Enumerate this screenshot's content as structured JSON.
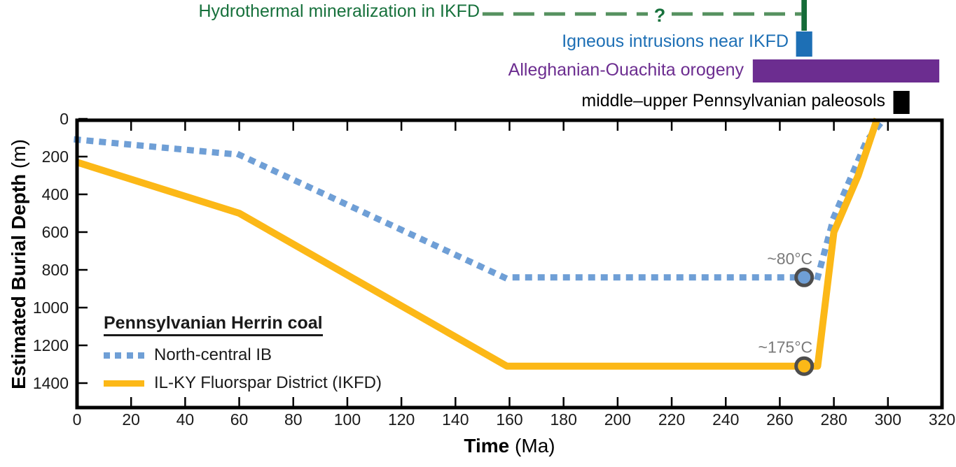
{
  "annotations": {
    "hydrothermal": {
      "label": "Hydrothermal mineralization in IKFD",
      "uncertainty_label": "?",
      "text_color": "#17713c",
      "dash_color": "#55915f",
      "bar_color": "#156b38",
      "dash_time_range_ma": [
        150,
        268
      ],
      "bar_time_range_ma": [
        268,
        270
      ]
    },
    "igneous": {
      "label": "Igneous intrusions near IKFD",
      "color": "#1d6fb5",
      "time_range_ma": [
        266,
        272
      ]
    },
    "orogeny": {
      "label": "Alleghanian-Ouachita orogeny",
      "color": "#6c2d90",
      "time_range_ma": [
        250,
        319
      ]
    },
    "paleosols": {
      "label": "middle–upper Pennsylvanian paleosols",
      "color": "#000000",
      "time_range_ma": [
        302,
        308
      ]
    }
  },
  "chart_data": {
    "type": "line",
    "xlabel_bold": "Time",
    "xlabel_unit": " (Ma)",
    "ylabel_bold": "Estimated Burial Depth",
    "ylabel_unit": " (m)",
    "xlim": [
      0,
      320
    ],
    "ylim": [
      0,
      1530
    ],
    "y_inverted": true,
    "x_ticks": [
      0,
      20,
      40,
      60,
      80,
      100,
      120,
      140,
      160,
      180,
      200,
      220,
      240,
      260,
      280,
      300,
      320
    ],
    "y_ticks": [
      0,
      200,
      400,
      600,
      800,
      1000,
      1200,
      1400
    ],
    "axis_color": "#000000",
    "tick_label_color": "#1a1a1a",
    "series": [
      {
        "name": "North-central IB",
        "style": "dotted",
        "color": "#6f9fd6",
        "points_time_depth": [
          [
            0,
            110
          ],
          [
            60,
            190
          ],
          [
            158,
            840
          ],
          [
            274,
            840
          ],
          [
            280,
            520
          ],
          [
            292,
            120
          ],
          [
            298,
            10
          ]
        ],
        "marker": {
          "time_ma": 269,
          "depth_m": 840,
          "label": "~80°C",
          "label_color": "#7a7a7a",
          "ring_color": "#4d4d4d"
        }
      },
      {
        "name": "IL-KY Fluorspar District (IKFD)",
        "style": "solid",
        "color": "#fcb817",
        "points_time_depth": [
          [
            0,
            230
          ],
          [
            60,
            500
          ],
          [
            159,
            1310
          ],
          [
            274,
            1310
          ],
          [
            280,
            600
          ],
          [
            289,
            300
          ],
          [
            296,
            0
          ]
        ],
        "marker": {
          "time_ma": 269,
          "depth_m": 1310,
          "label": "~175°C",
          "label_color": "#7a7a7a",
          "ring_color": "#4d4d4d"
        }
      }
    ],
    "legend": {
      "title": "Pennsylvanian Herrin coal"
    }
  }
}
